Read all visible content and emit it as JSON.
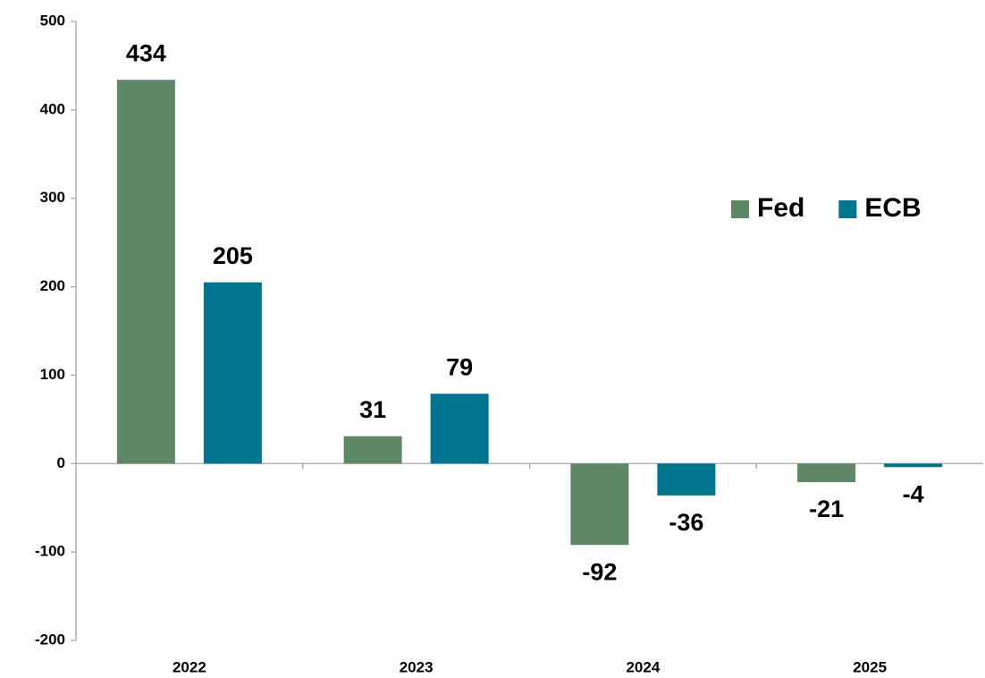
{
  "chart_data": {
    "type": "bar",
    "categories": [
      "2022",
      "2023",
      "2024",
      "2025"
    ],
    "series": [
      {
        "name": "Fed",
        "color": "#5e8865",
        "values": [
          434,
          31,
          -92,
          -21
        ]
      },
      {
        "name": "ECB",
        "color": "#00758f",
        "values": [
          205,
          79,
          -36,
          -4
        ]
      }
    ],
    "ylim": [
      -200,
      500
    ],
    "yticks": [
      -200,
      -100,
      0,
      100,
      200,
      300,
      400,
      500
    ],
    "grid": false,
    "legend": "upper right"
  }
}
